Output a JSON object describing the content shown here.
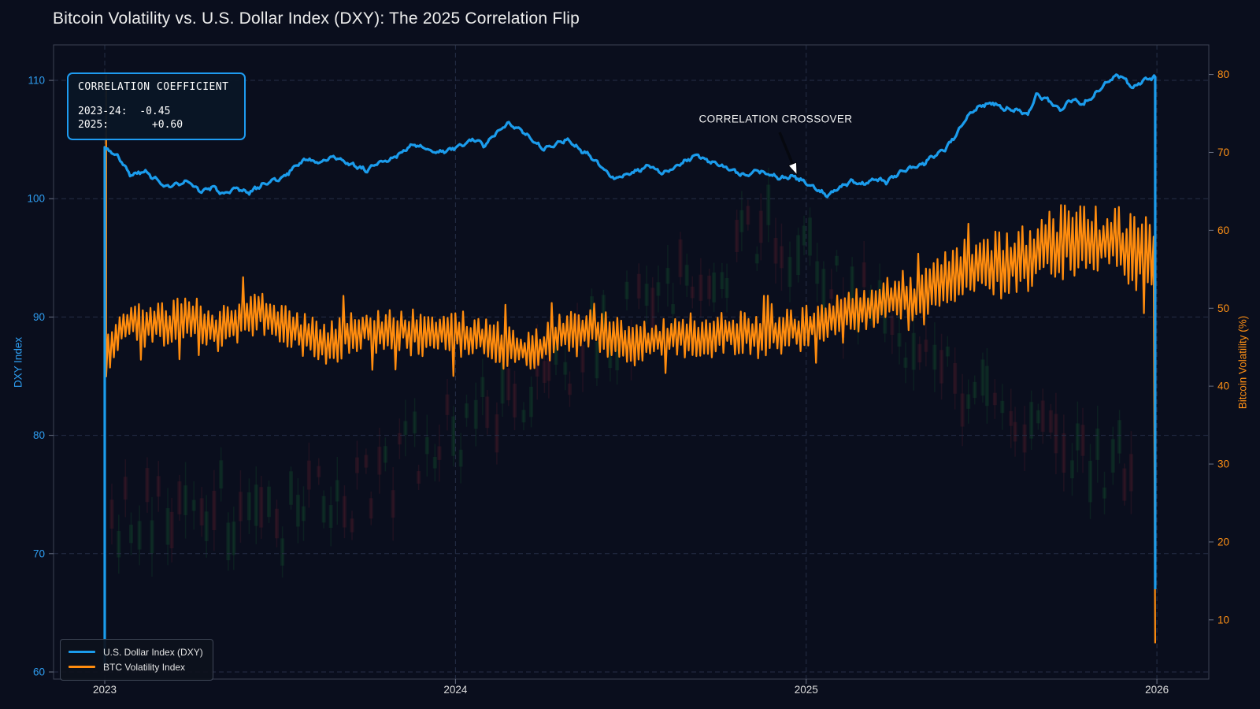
{
  "title": "Bitcoin Volatility vs. U.S. Dollar Index (DXY): The 2025 Correlation Flip",
  "colors": {
    "background": "#0a0e1d",
    "dxy_line": "#1b9cec",
    "btc_line": "#ff8c0e",
    "grid": "#262f47",
    "spine": "#3c4354",
    "tick_mark": "#6a7184",
    "x_tick_text": "#dcdcdc",
    "left_tick_text": "#2e9df0",
    "right_tick_text": "#ff9015",
    "candle_bull": "#14532d",
    "candle_bear": "#5b1d2b",
    "annotation_text": "#f4f4f4",
    "arrow_head": "#ffffff",
    "arrow_shaft": "#06080f"
  },
  "correlation_box": {
    "title": "CORRELATION COEFFICIENT",
    "line1": "2023-24:  -0.45",
    "line2": "2025:       +0.60"
  },
  "annotation": {
    "label": "CORRELATION CROSSOVER",
    "arrow_start_x": 990,
    "arrow_start_y": 168,
    "arrow_tip_x": 1012,
    "arrow_tip_y": 222
  },
  "legend": {
    "items": [
      {
        "label": "U.S. Dollar Index (DXY)",
        "series": "dxy"
      },
      {
        "label": "BTC Volatility Index",
        "series": "btc"
      }
    ]
  },
  "chart_data": {
    "type": "line",
    "title": "Bitcoin Volatility vs. U.S. Dollar Index (DXY): The 2025 Correlation Flip",
    "x_axis": {
      "ticks": [
        2023,
        2024,
        2025,
        2026
      ],
      "tick_labels": [
        "2023",
        "2024",
        "2025",
        "2026"
      ],
      "range": [
        2022.854,
        2026.148
      ]
    },
    "left_axis": {
      "label": "DXY Index",
      "ticks": [
        60,
        70,
        80,
        90,
        100,
        110
      ],
      "range": [
        59.4,
        113.0
      ]
    },
    "right_axis": {
      "label": "Bitcoin Volatility (%)",
      "ticks": [
        10,
        20,
        30,
        40,
        50,
        60,
        70,
        80
      ],
      "range": [
        2.4,
        83.8
      ]
    },
    "grid": {
      "horizontal_on_left_ticks": true,
      "vertical_on_x_ticks": true,
      "style": "dashed"
    },
    "series": [
      {
        "name": "U.S. Dollar Index (DXY)",
        "axis": "left",
        "color_key": "dxy_line",
        "line_width": 3.2,
        "edge_start_value": 60.5,
        "edge_end_value": 67,
        "x": [
          2023.0,
          2023.038,
          2023.072,
          2023.117,
          2023.173,
          2023.24,
          2023.274,
          2023.308,
          2023.342,
          2023.375,
          2023.409,
          2023.443,
          2023.476,
          2023.51,
          2023.544,
          2023.578,
          2023.611,
          2023.645,
          2023.679,
          2023.712,
          2023.746,
          2023.78,
          2023.813,
          2023.847,
          2023.881,
          2023.915,
          2023.948,
          2023.982,
          2024.016,
          2024.049,
          2024.083,
          2024.117,
          2024.15,
          2024.184,
          2024.218,
          2024.251,
          2024.285,
          2024.319,
          2024.352,
          2024.386,
          2024.42,
          2024.453,
          2024.487,
          2024.521,
          2024.555,
          2024.588,
          2024.622,
          2024.656,
          2024.689,
          2024.723,
          2024.757,
          2024.79,
          2024.824,
          2024.858,
          2024.891,
          2024.925,
          2024.959,
          2024.993,
          2025.026,
          2025.06,
          2025.094,
          2025.127,
          2025.161,
          2025.195,
          2025.228,
          2025.262,
          2025.296,
          2025.33,
          2025.363,
          2025.397,
          2025.431,
          2025.464,
          2025.498,
          2025.532,
          2025.565,
          2025.599,
          2025.633,
          2025.656,
          2025.69,
          2025.724,
          2025.758,
          2025.79,
          2025.82,
          2025.85,
          2025.875,
          2025.9,
          2025.93,
          2025.96,
          2025.995
        ],
        "y": [
          104.3,
          103.6,
          102.0,
          102.3,
          101.0,
          101.4,
          100.6,
          101.0,
          100.3,
          100.9,
          100.5,
          101.1,
          101.5,
          101.8,
          102.8,
          103.4,
          103.0,
          103.6,
          103.2,
          102.8,
          102.4,
          103.0,
          103.3,
          103.9,
          104.6,
          104.2,
          103.9,
          104.1,
          104.5,
          105.0,
          104.5,
          105.6,
          106.4,
          105.9,
          104.9,
          104.2,
          104.6,
          105.0,
          104.2,
          103.6,
          102.6,
          101.7,
          102.1,
          102.4,
          102.8,
          102.1,
          102.6,
          103.2,
          103.7,
          103.2,
          102.8,
          102.4,
          101.9,
          102.4,
          102.1,
          101.7,
          101.9,
          101.5,
          100.9,
          100.2,
          100.9,
          101.5,
          101.2,
          101.7,
          101.4,
          102.1,
          102.6,
          102.9,
          103.6,
          104.2,
          105.6,
          107.1,
          107.9,
          108.1,
          107.6,
          107.5,
          107.1,
          108.8,
          108.3,
          107.5,
          108.4,
          108.0,
          108.7,
          109.6,
          110.3,
          110.4,
          109.3,
          110.0,
          110.3
        ]
      },
      {
        "name": "BTC Volatility Index",
        "axis": "right",
        "color_key": "btc_line",
        "line_width": 2.2,
        "edge_start_value": 80,
        "edge_end_value": 7,
        "jitter": {
          "base_amplitude": 3.0,
          "amplitude_growth_after_2025": 2.6,
          "step_years": 0.0055,
          "spike_chance": 0.07,
          "spike_factor": 1.9,
          "seed": 7
        },
        "x": [
          2023.004,
          2023.04,
          2023.11,
          2023.17,
          2023.24,
          2023.31,
          2023.38,
          2023.44,
          2023.51,
          2023.58,
          2023.65,
          2023.71,
          2023.78,
          2023.85,
          2023.91,
          2023.98,
          2024.05,
          2024.12,
          2024.18,
          2024.25,
          2024.32,
          2024.39,
          2024.45,
          2024.52,
          2024.59,
          2024.66,
          2024.72,
          2024.79,
          2024.86,
          2024.93,
          2024.99,
          2025.06,
          2025.13,
          2025.19,
          2025.26,
          2025.33,
          2025.4,
          2025.46,
          2025.53,
          2025.6,
          2025.66,
          2025.73,
          2025.8,
          2025.87,
          2025.93,
          2025.995
        ],
        "y": [
          43,
          47.5,
          48.5,
          47.5,
          49,
          47,
          48,
          49.5,
          47.5,
          46.5,
          45.5,
          47.5,
          47,
          47.5,
          46.5,
          47,
          46.5,
          45.5,
          44.5,
          45,
          46.5,
          47,
          46.5,
          45.5,
          46,
          46.5,
          46.5,
          47,
          46.5,
          47,
          47.5,
          48.5,
          49,
          50,
          51.5,
          51,
          53.5,
          55,
          55.5,
          56,
          57,
          58.5,
          58,
          58.5,
          57.5,
          55.5
        ]
      }
    ],
    "background_candles": {
      "count": 150,
      "seed": 11,
      "opacity": 0.3,
      "body_width": 5,
      "center_path_left_axis_units": [
        [
          2023.0,
          73
        ],
        [
          2023.25,
          75
        ],
        [
          2023.5,
          72.5
        ],
        [
          2023.75,
          76
        ],
        [
          2024.0,
          80
        ],
        [
          2024.25,
          85
        ],
        [
          2024.5,
          90
        ],
        [
          2024.7,
          94
        ],
        [
          2024.9,
          97
        ],
        [
          2025.1,
          93
        ],
        [
          2025.3,
          88
        ],
        [
          2025.5,
          84
        ],
        [
          2025.7,
          80
        ],
        [
          2025.95,
          76
        ]
      ]
    }
  }
}
